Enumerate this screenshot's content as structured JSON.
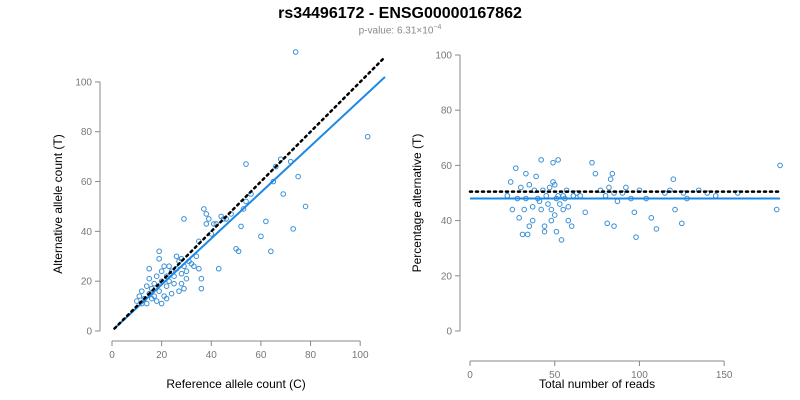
{
  "title": "rs34496172 - ENSG00000167862",
  "subtitle": {
    "prefix": "p-value: 6.31×10",
    "exponent": "−4"
  },
  "colors": {
    "points": "#3a8fd6",
    "fit_line": "#1e88e5",
    "reference_line": "#000000"
  },
  "chart_data": [
    {
      "type": "scatter",
      "xlabel": "Reference allele count (C)",
      "ylabel": "Alternative allele count (T)",
      "xlim": [
        0,
        110
      ],
      "ylim": [
        0,
        110
      ],
      "xticks": [
        0,
        20,
        40,
        60,
        80,
        100
      ],
      "yticks": [
        0,
        20,
        40,
        60,
        80,
        100
      ],
      "fit_line": {
        "x": [
          1,
          110
        ],
        "y": [
          1,
          102
        ]
      },
      "reference_line": {
        "x": [
          1,
          110
        ],
        "y": [
          1,
          110
        ],
        "style": "dotted"
      },
      "points": [
        [
          10,
          12
        ],
        [
          11,
          14
        ],
        [
          12,
          11
        ],
        [
          12,
          16
        ],
        [
          13,
          13
        ],
        [
          14,
          18
        ],
        [
          14,
          11
        ],
        [
          15,
          15
        ],
        [
          15,
          21
        ],
        [
          15,
          25
        ],
        [
          16,
          13
        ],
        [
          16,
          17
        ],
        [
          17,
          19
        ],
        [
          17,
          14
        ],
        [
          18,
          22
        ],
        [
          18,
          12
        ],
        [
          19,
          16
        ],
        [
          19,
          29
        ],
        [
          19,
          32
        ],
        [
          20,
          20
        ],
        [
          20,
          24
        ],
        [
          20,
          11
        ],
        [
          21,
          14
        ],
        [
          21,
          26
        ],
        [
          22,
          18
        ],
        [
          22,
          13
        ],
        [
          22,
          22
        ],
        [
          23,
          20
        ],
        [
          23,
          26
        ],
        [
          24,
          24
        ],
        [
          24,
          15
        ],
        [
          25,
          19
        ],
        [
          25,
          22
        ],
        [
          26,
          25
        ],
        [
          26,
          30
        ],
        [
          27,
          16
        ],
        [
          27,
          28
        ],
        [
          28,
          19
        ],
        [
          28,
          23
        ],
        [
          28,
          29
        ],
        [
          29,
          45
        ],
        [
          29,
          17
        ],
        [
          29,
          26
        ],
        [
          30,
          21
        ],
        [
          30,
          24
        ],
        [
          31,
          28
        ],
        [
          32,
          27
        ],
        [
          33,
          26
        ],
        [
          34,
          30
        ],
        [
          35,
          25
        ],
        [
          35,
          36
        ],
        [
          36,
          17
        ],
        [
          36,
          21
        ],
        [
          37,
          49
        ],
        [
          38,
          47
        ],
        [
          38,
          43
        ],
        [
          39,
          45
        ],
        [
          40,
          39
        ],
        [
          41,
          43
        ],
        [
          42,
          43
        ],
        [
          43,
          25
        ],
        [
          44,
          46
        ],
        [
          45,
          45
        ],
        [
          46,
          45
        ],
        [
          48,
          47
        ],
        [
          50,
          33
        ],
        [
          51,
          32
        ],
        [
          52,
          42
        ],
        [
          53,
          49
        ],
        [
          54,
          52
        ],
        [
          54,
          67
        ],
        [
          56,
          55
        ],
        [
          60,
          38
        ],
        [
          62,
          44
        ],
        [
          64,
          32
        ],
        [
          65,
          60
        ],
        [
          66,
          66
        ],
        [
          68,
          69
        ],
        [
          69,
          55
        ],
        [
          72,
          68
        ],
        [
          73,
          41
        ],
        [
          74,
          112
        ],
        [
          75,
          62
        ],
        [
          78,
          50
        ],
        [
          103,
          78
        ]
      ]
    },
    {
      "type": "scatter",
      "xlabel": "Total number of reads",
      "ylabel": "Percentage alternative (T)",
      "xlim": [
        0,
        180
      ],
      "ylim": [
        0,
        100
      ],
      "xticks": [
        0,
        50,
        100,
        150
      ],
      "yticks": [
        0,
        20,
        40,
        60,
        80,
        100
      ],
      "fit_line": {
        "x": [
          0,
          183
        ],
        "y": [
          48,
          48
        ]
      },
      "reference_line": {
        "x": [
          0,
          183
        ],
        "y": [
          50.5,
          50.5
        ],
        "style": "dotted"
      },
      "points": [
        [
          22,
          49
        ],
        [
          24,
          54
        ],
        [
          25,
          44
        ],
        [
          27,
          59
        ],
        [
          28,
          48
        ],
        [
          29,
          41
        ],
        [
          30,
          52
        ],
        [
          31,
          35
        ],
        [
          32,
          44
        ],
        [
          33,
          48
        ],
        [
          33,
          57
        ],
        [
          34,
          35
        ],
        [
          35,
          38
        ],
        [
          35,
          53
        ],
        [
          37,
          45
        ],
        [
          37,
          40
        ],
        [
          38,
          51
        ],
        [
          39,
          56
        ],
        [
          40,
          48
        ],
        [
          41,
          47
        ],
        [
          42,
          62
        ],
        [
          42,
          44
        ],
        [
          43,
          51
        ],
        [
          44,
          38
        ],
        [
          44,
          36
        ],
        [
          45,
          49
        ],
        [
          46,
          46
        ],
        [
          47,
          52
        ],
        [
          48,
          44
        ],
        [
          48,
          40
        ],
        [
          49,
          54
        ],
        [
          49,
          61
        ],
        [
          50,
          42
        ],
        [
          50,
          53
        ],
        [
          51,
          48
        ],
        [
          51,
          36
        ],
        [
          52,
          62
        ],
        [
          52,
          49
        ],
        [
          53,
          46
        ],
        [
          54,
          33
        ],
        [
          55,
          49
        ],
        [
          55,
          44
        ],
        [
          56,
          48
        ],
        [
          57,
          51
        ],
        [
          58,
          45
        ],
        [
          58,
          40
        ],
        [
          60,
          38
        ],
        [
          61,
          49
        ],
        [
          63,
          50
        ],
        [
          65,
          49
        ],
        [
          68,
          43
        ],
        [
          72,
          61
        ],
        [
          74,
          57
        ],
        [
          77,
          51
        ],
        [
          80,
          49
        ],
        [
          81,
          39
        ],
        [
          82,
          52
        ],
        [
          83,
          55
        ],
        [
          84,
          57
        ],
        [
          85,
          50
        ],
        [
          85,
          38
        ],
        [
          87,
          47
        ],
        [
          90,
          50
        ],
        [
          92,
          52
        ],
        [
          95,
          48
        ],
        [
          97,
          43
        ],
        [
          98,
          34
        ],
        [
          100,
          51
        ],
        [
          104,
          48
        ],
        [
          107,
          41
        ],
        [
          110,
          37
        ],
        [
          115,
          50
        ],
        [
          118,
          51
        ],
        [
          120,
          55
        ],
        [
          121,
          44
        ],
        [
          125,
          39
        ],
        [
          126,
          50
        ],
        [
          128,
          48
        ],
        [
          135,
          51
        ],
        [
          140,
          50
        ],
        [
          145,
          49
        ],
        [
          158,
          50
        ],
        [
          181,
          44
        ],
        [
          183,
          60
        ]
      ]
    }
  ]
}
